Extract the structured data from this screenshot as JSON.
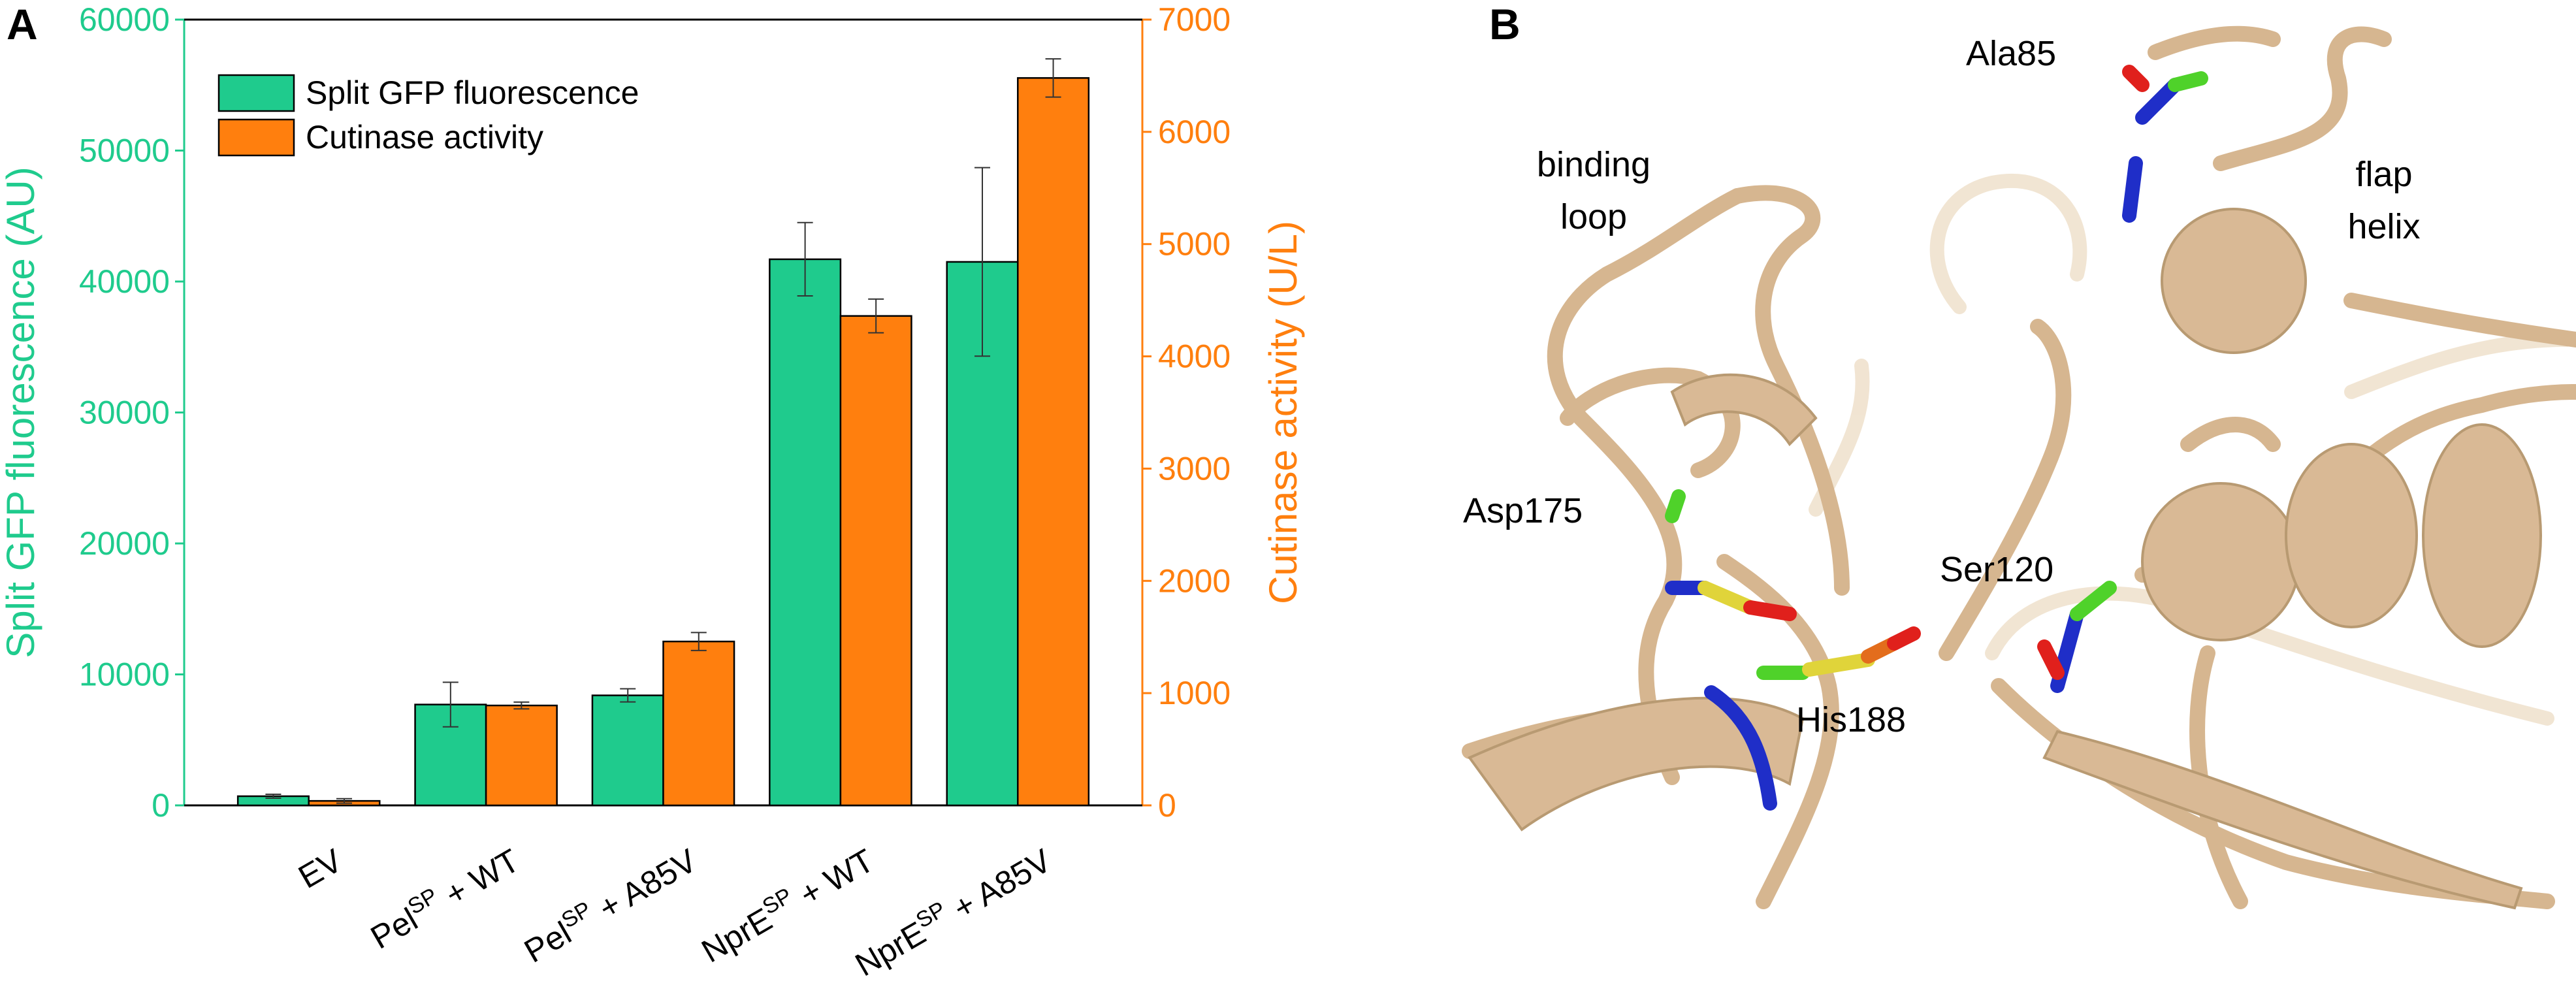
{
  "chart_data": {
    "type": "bar",
    "categories": [
      [
        "EV"
      ],
      [
        "Pel",
        "SP",
        " + WT"
      ],
      [
        "Pel",
        "SP",
        " + A85V"
      ],
      [
        "NprE",
        "SP",
        " + WT"
      ],
      [
        "NprE",
        "SP",
        " + A85V"
      ]
    ],
    "series": [
      {
        "name": "Split GFP fluorescence",
        "color": "#1fcb8d",
        "values": [
          700,
          7700,
          8400,
          41700,
          41500
        ],
        "errors": [
          150,
          1700,
          500,
          2800,
          7200
        ]
      },
      {
        "name": "Cutinase activity",
        "color": "#ff7f0e",
        "axis": "y2",
        "values": [
          40,
          890,
          1460,
          4360,
          6480
        ],
        "errors": [
          20,
          30,
          80,
          150,
          170
        ]
      }
    ],
    "ylabel": "Split GFP fluorescence (AU)",
    "y2label": "Cutinase activity (U/L)",
    "ylim": [
      0,
      60000
    ],
    "yticks": [
      0,
      10000,
      20000,
      30000,
      40000,
      50000,
      60000
    ],
    "y2lim": [
      0,
      7000
    ],
    "y2ticks": [
      0,
      1000,
      2000,
      3000,
      4000,
      5000,
      6000,
      7000
    ],
    "legend": "upper left"
  },
  "panel_labels": [
    "A",
    "B"
  ],
  "structure_labels": [
    [
      "binding",
      "loop"
    ],
    [
      "flap",
      "helix"
    ],
    [
      "Ala85"
    ],
    [
      "Asp175"
    ],
    [
      "Ser120"
    ],
    [
      "His188"
    ]
  ]
}
